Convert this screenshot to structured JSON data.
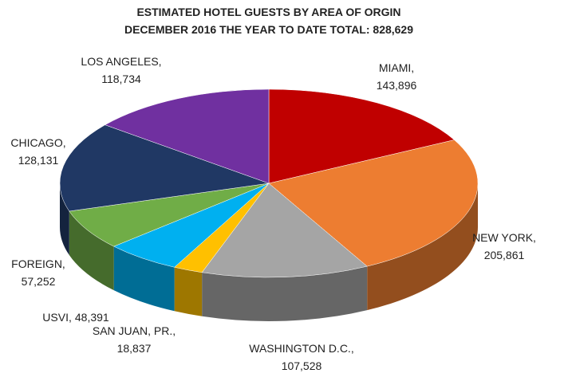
{
  "chart_data": {
    "type": "pie3d",
    "title": "ESTIMATED HOTEL GUESTS BY AREA OF ORGIN",
    "subtitle": "DECEMBER 2016 THE YEAR TO DATE TOTAL: 828,629",
    "categories": [
      "MIAMI,",
      "NEW YORK,",
      "WASHINGTON D.C.,",
      "SAN JUAN, PR.,",
      "USVI,",
      "FOREIGN,",
      "CHICAGO,",
      "LOS ANGELES,"
    ],
    "values": [
      143896,
      205861,
      107528,
      18837,
      48391,
      57252,
      128131,
      118734
    ],
    "value_labels": [
      "143,896",
      "205,861",
      "107,528",
      "18,837",
      "48,391",
      "57,252",
      "128,131",
      "118,734"
    ],
    "colors": [
      "#c00000",
      "#ed7d31",
      "#a5a5a5",
      "#ffc000",
      "#00b0f0",
      "#70ad47",
      "#203864",
      "#7030a0"
    ]
  }
}
